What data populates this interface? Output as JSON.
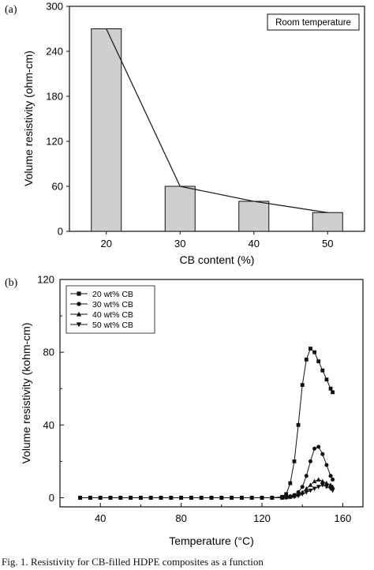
{
  "caption": "Fig. 1. Resistivity for CB-filled HDPE composites as a function",
  "chart_data": [
    {
      "panel_label": "(a)",
      "type": "bar",
      "annotation": "Room temperature",
      "xlabel": "CB content (%)",
      "ylabel": "Volume resistivity (ohm-cm)",
      "categories": [
        "20",
        "30",
        "40",
        "50"
      ],
      "values": [
        270,
        60,
        40,
        25
      ],
      "ylim": [
        0,
        300
      ],
      "yticks": [
        "0",
        "60",
        "120",
        "180",
        "240",
        "300"
      ],
      "trend_line": true
    },
    {
      "panel_label": "(b)",
      "type": "line",
      "xlabel": "Temperature (",
      "xlabel_unit": "°C",
      "xlabel_close": ")",
      "ylabel": "Volume resistivity (kohm-cm)",
      "xlim": [
        20,
        170
      ],
      "ylim": [
        -5,
        120
      ],
      "xticks": [
        "40",
        "80",
        "120",
        "160"
      ],
      "yticks": [
        "0",
        "40",
        "80",
        "120"
      ],
      "legend_position": "top-left",
      "series": [
        {
          "name": "20 wt% CB",
          "marker": "square",
          "x": [
            30,
            35,
            40,
            45,
            50,
            55,
            60,
            65,
            70,
            75,
            80,
            85,
            90,
            95,
            100,
            105,
            110,
            115,
            120,
            125,
            130,
            132,
            134,
            136,
            138,
            140,
            142,
            144,
            146,
            148,
            150,
            152,
            154,
            155
          ],
          "y": [
            0,
            0,
            0,
            0,
            0,
            0,
            0,
            0,
            0,
            0,
            0,
            0,
            0,
            0,
            0,
            0,
            0,
            0,
            0,
            0,
            0.5,
            2,
            8,
            20,
            40,
            62,
            76,
            82,
            80,
            75,
            70,
            65,
            60,
            58
          ]
        },
        {
          "name": "30 wt% CB",
          "marker": "circle",
          "x": [
            30,
            35,
            40,
            45,
            50,
            55,
            60,
            65,
            70,
            75,
            80,
            85,
            90,
            95,
            100,
            105,
            110,
            115,
            120,
            125,
            130,
            132,
            134,
            136,
            138,
            140,
            142,
            144,
            146,
            148,
            150,
            152,
            154,
            155
          ],
          "y": [
            0,
            0,
            0,
            0,
            0,
            0,
            0,
            0,
            0,
            0,
            0,
            0,
            0,
            0,
            0,
            0,
            0,
            0,
            0,
            0,
            0,
            0.3,
            0.8,
            1.5,
            3,
            6,
            12,
            20,
            27,
            28,
            24,
            18,
            12,
            10
          ]
        },
        {
          "name": "40 wt% CB",
          "marker": "triangle-up",
          "x": [
            30,
            35,
            40,
            45,
            50,
            55,
            60,
            65,
            70,
            75,
            80,
            85,
            90,
            95,
            100,
            105,
            110,
            115,
            120,
            125,
            130,
            132,
            134,
            136,
            138,
            140,
            142,
            144,
            146,
            148,
            150,
            152,
            154,
            155
          ],
          "y": [
            0,
            0,
            0,
            0,
            0,
            0,
            0,
            0,
            0,
            0,
            0,
            0,
            0,
            0,
            0,
            0,
            0,
            0,
            0,
            0,
            0,
            0.2,
            0.5,
            1,
            2,
            3,
            5,
            7,
            9,
            10,
            9,
            8,
            7,
            6
          ]
        },
        {
          "name": "50 wt% CB",
          "marker": "triangle-down",
          "x": [
            30,
            35,
            40,
            45,
            50,
            55,
            60,
            65,
            70,
            75,
            80,
            85,
            90,
            95,
            100,
            105,
            110,
            115,
            120,
            125,
            130,
            132,
            134,
            136,
            138,
            140,
            142,
            144,
            146,
            148,
            150,
            152,
            154,
            155
          ],
          "y": [
            0,
            0,
            0,
            0,
            0,
            0,
            0,
            0,
            0,
            0,
            0,
            0,
            0,
            0,
            0,
            0,
            0,
            0,
            0,
            0,
            0,
            0.1,
            0.3,
            0.6,
            1,
            2,
            3,
            4,
            5,
            6,
            7,
            6,
            5,
            4
          ]
        }
      ]
    }
  ]
}
